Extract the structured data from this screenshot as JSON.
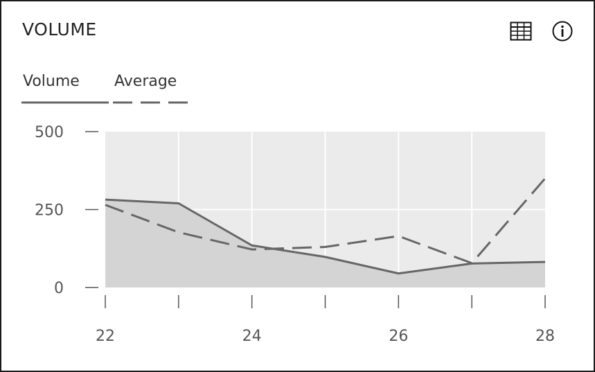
{
  "header": {
    "title": "VOLUME",
    "table_icon": "table-grid-icon",
    "info_icon": "info-circle-icon"
  },
  "legend": [
    {
      "label": "Volume",
      "style": "solid"
    },
    {
      "label": "Average",
      "style": "dashed"
    }
  ],
  "colors": {
    "line": "#666666",
    "plot_bg": "#ebebeb",
    "area_fill": "#d4d4d4",
    "grid": "#ffffff",
    "axis": "#555555",
    "border": "#1a1a1a"
  },
  "chart_data": {
    "type": "area",
    "x": [
      22,
      23,
      24,
      25,
      26,
      27,
      28
    ],
    "xticks": [
      "22",
      "",
      "24",
      "",
      "26",
      "",
      "28"
    ],
    "yticks": [
      "500",
      "250",
      "0"
    ],
    "ylim": [
      0,
      500
    ],
    "xlim": [
      22,
      28
    ],
    "grid": true,
    "legend_position": "top-left",
    "series": [
      {
        "name": "Volume",
        "style": "solid",
        "filled": true,
        "values": [
          282,
          270,
          135,
          98,
          45,
          77,
          82
        ]
      },
      {
        "name": "Average",
        "style": "dashed",
        "filled": false,
        "values": [
          265,
          177,
          122,
          130,
          165,
          78,
          350
        ]
      }
    ]
  }
}
